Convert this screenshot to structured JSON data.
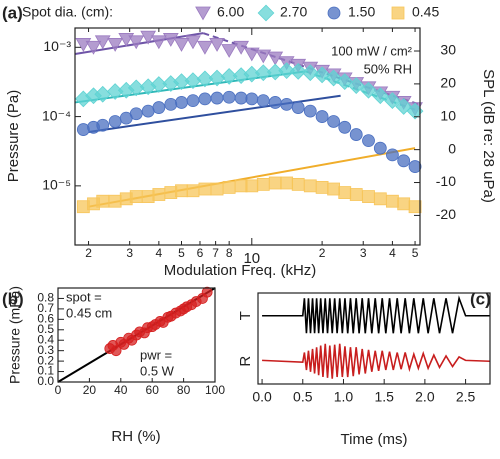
{
  "chart_data": [
    {
      "type": "scatter",
      "panel_label": "(a)",
      "xscale": "log",
      "yscale": "log",
      "xlabel": "Modulation Freq. (kHz)",
      "ylabel": "Pressure (Pa)",
      "y2label": "SPL (dB re: 28 uPa)",
      "legend_title": "Spot dia. (cm):",
      "annotations": [
        "100 mW / cm²",
        "50% RH"
      ],
      "xlim": [
        1.75,
        52.5
      ],
      "ylim": [
        1.4e-06,
        0.0019
      ],
      "y2lim": [
        -29,
        37
      ],
      "xticks": [
        2,
        3,
        4,
        5,
        6,
        7,
        8,
        10,
        {
          "value": 20,
          "label": "2"
        },
        {
          "value": 30,
          "label": "3"
        },
        {
          "value": 40,
          "label": "4"
        },
        {
          "value": 50,
          "label": "5"
        }
      ],
      "yticks": [
        {
          "value": 0.001,
          "label": "10⁻³"
        },
        {
          "value": 0.0001,
          "label": "10⁻⁴"
        },
        {
          "value": 1e-05,
          "label": "10⁻⁵"
        }
      ],
      "y2ticks": [
        30,
        20,
        10,
        0,
        -10,
        -20
      ],
      "x": [
        1.9,
        2.1,
        2.3,
        2.6,
        2.9,
        3.2,
        3.6,
        4.0,
        4.5,
        5.0,
        5.6,
        6.3,
        7.1,
        8.0,
        9.0,
        10,
        11.2,
        12.6,
        14.1,
        15.8,
        17.8,
        20,
        22.4,
        25,
        28,
        31.6,
        35.5,
        40,
        44.7,
        50
      ],
      "series": [
        {
          "name": "6.00",
          "color": "#9b7bc0",
          "line_color": "#6f55a8",
          "marker": "triangle",
          "values": [
            0.0011,
            0.001,
            0.0012,
            0.0011,
            0.0013,
            0.0012,
            0.0014,
            0.0012,
            0.0013,
            0.0011,
            0.0012,
            0.001,
            0.0011,
            0.0009,
            0.001,
            0.0008,
            0.00075,
            0.0007,
            0.0006,
            0.00055,
            0.0005,
            0.00045,
            0.0004,
            0.00035,
            0.0003,
            0.00026,
            0.00022,
            0.00019,
            0.00016,
            0.00013
          ],
          "fit": {
            "x": [
              1.75,
              6.2
            ],
            "values": [
              0.0008,
              0.0016
            ]
          },
          "trend": {
            "x": [
              6.2,
              52
            ],
            "values": [
              0.0016,
              0.00015
            ]
          }
        },
        {
          "name": "2.70",
          "color": "#5fd3d3",
          "line_color": "#2fb8b8",
          "marker": "diamond",
          "values": [
            0.00018,
            0.0002,
            0.00021,
            0.00023,
            0.00024,
            0.00026,
            0.00027,
            0.00029,
            0.0003,
            0.00032,
            0.00033,
            0.00035,
            0.00036,
            0.00038,
            0.00039,
            0.00041,
            0.00043,
            0.00044,
            0.00046,
            0.00045,
            0.00043,
            0.0004,
            0.00036,
            0.00032,
            0.00028,
            0.00024,
            0.0002,
            0.00017,
            0.00014,
            0.00012
          ],
          "fit": {
            "x": [
              1.75,
              17
            ],
            "values": [
              0.00016,
              0.00045
            ]
          },
          "trend": {
            "x": [
              17,
              52
            ],
            "values": [
              0.00045,
              0.00012
            ]
          }
        },
        {
          "name": "1.50",
          "color": "#4a6fc0",
          "line_color": "#2f4f9e",
          "marker": "circle",
          "values": [
            6.5e-05,
            7e-05,
            7.5e-05,
            8.5e-05,
            9.5e-05,
            0.00011,
            0.00012,
            0.000135,
            0.00015,
            0.00016,
            0.00017,
            0.00018,
            0.000185,
            0.00019,
            0.000185,
            0.00018,
            0.00017,
            0.00016,
            0.00015,
            0.000135,
            0.00012,
            0.0001,
            8.5e-05,
            7e-05,
            5.5e-05,
            4.5e-05,
            3.5e-05,
            2.8e-05,
            2.3e-05,
            1.9e-05
          ],
          "fit": {
            "x": [
              2,
              24
            ],
            "values": [
              6e-05,
              0.0002
            ]
          }
        },
        {
          "name": "0.45",
          "color": "#f7c55a",
          "line_color": "#f0ad2a",
          "marker": "square",
          "values": [
            5e-06,
            5.5e-06,
            6e-06,
            6e-06,
            6.5e-06,
            7e-06,
            7e-06,
            7.5e-06,
            8e-06,
            8.5e-06,
            8.5e-06,
            9e-06,
            9e-06,
            9.5e-06,
            1e-05,
            1e-05,
            1.05e-05,
            1.1e-05,
            1.1e-05,
            1.05e-05,
            1e-05,
            9.5e-06,
            9e-06,
            8e-06,
            7.5e-06,
            7e-06,
            6.5e-06,
            6e-06,
            5.5e-06,
            5e-06
          ],
          "fit": {
            "x": [
              2,
              50
            ],
            "values": [
              5e-06,
              3.5e-05
            ]
          }
        }
      ]
    },
    {
      "type": "scatter",
      "panel_label": "(b)",
      "xlabel": "RH (%)",
      "ylabel": "Pressure (mPa)",
      "annotations": [
        "spot =",
        "0.45 cm",
        "pwr =",
        "0.5 W"
      ],
      "xlim": [
        0,
        100
      ],
      "ylim": [
        0,
        0.9
      ],
      "xticks": [
        0,
        20,
        40,
        60,
        80,
        100
      ],
      "yticks": [
        {
          "value": 0,
          "label": "0.0"
        },
        0.1,
        0.2,
        0.3,
        0.4,
        0.5,
        0.6,
        0.7,
        0.8
      ],
      "x": [
        33,
        35,
        37,
        40,
        42,
        45,
        47,
        50,
        52,
        55,
        57,
        60,
        62,
        65,
        67,
        70,
        72,
        75,
        78,
        80,
        82,
        85,
        88,
        92,
        95
      ],
      "series": [
        {
          "color": "#d62020",
          "line_color": "#000000",
          "marker": "circle",
          "values": [
            0.32,
            0.35,
            0.3,
            0.38,
            0.36,
            0.42,
            0.4,
            0.45,
            0.48,
            0.47,
            0.52,
            0.53,
            0.55,
            0.58,
            0.57,
            0.62,
            0.63,
            0.66,
            0.68,
            0.7,
            0.72,
            0.74,
            0.77,
            0.8,
            0.86
          ],
          "fit": {
            "x": [
              0,
              100
            ],
            "values": [
              0,
              0.9
            ]
          }
        }
      ]
    },
    {
      "type": "line",
      "panel_label": "(c)",
      "xlabel": "Time (ms)",
      "xlim": [
        -0.05,
        2.8
      ],
      "ylim": [
        -1.3,
        1.3
      ],
      "xticks": [
        {
          "value": 0,
          "label": "0.0"
        },
        0.5,
        {
          "value": 1,
          "label": "1.0"
        },
        1.5,
        {
          "value": 2,
          "label": "2.0"
        },
        2.5
      ],
      "x": [
        0,
        0.5,
        0.52,
        0.545,
        0.57,
        0.595,
        0.62,
        0.645,
        0.67,
        0.695,
        0.72,
        0.748,
        0.776,
        0.804,
        0.832,
        0.862,
        0.892,
        0.922,
        0.954,
        0.986,
        1.018,
        1.052,
        1.086,
        1.12,
        1.156,
        1.192,
        1.23,
        1.268,
        1.308,
        1.348,
        1.39,
        1.432,
        1.476,
        1.52,
        1.566,
        1.612,
        1.66,
        1.708,
        1.758,
        1.81,
        1.864,
        1.92,
        1.98,
        2.04,
        2.11,
        2.18,
        2.26,
        2.34,
        2.42,
        2.5,
        2.8
      ],
      "series": [
        {
          "name": "T",
          "color": "#000000",
          "values": [
            0,
            0,
            1,
            -1,
            1,
            -1,
            1,
            -1,
            1,
            -1,
            1,
            -1,
            1,
            -1,
            1,
            -1,
            1,
            -1,
            1,
            -1,
            1,
            -1,
            1,
            -1,
            1,
            -1,
            1,
            -1,
            1,
            -1,
            1,
            -1,
            1,
            -1,
            1,
            -1,
            1,
            -1,
            1,
            -1,
            1,
            -1,
            1,
            -1,
            1,
            -1,
            1,
            -1,
            1,
            0,
            0
          ]
        },
        {
          "name": "R",
          "color": "#c81e1e",
          "values": [
            0.05,
            -0.05,
            0.5,
            -0.5,
            0.6,
            -0.6,
            0.7,
            -0.7,
            0.8,
            -0.8,
            0.9,
            -0.9,
            1,
            -0.95,
            0.9,
            -1,
            0.95,
            -0.9,
            1,
            -0.9,
            0.85,
            -0.9,
            0.8,
            -0.85,
            0.8,
            -0.75,
            0.7,
            -0.7,
            0.65,
            -0.6,
            0.6,
            -0.55,
            0.6,
            -0.5,
            0.55,
            -0.5,
            0.5,
            -0.45,
            0.5,
            -0.45,
            0.4,
            -0.4,
            0.45,
            -0.4,
            0.35,
            -0.35,
            0.3,
            -0.3,
            0.25,
            0.05,
            0
          ]
        }
      ]
    }
  ]
}
